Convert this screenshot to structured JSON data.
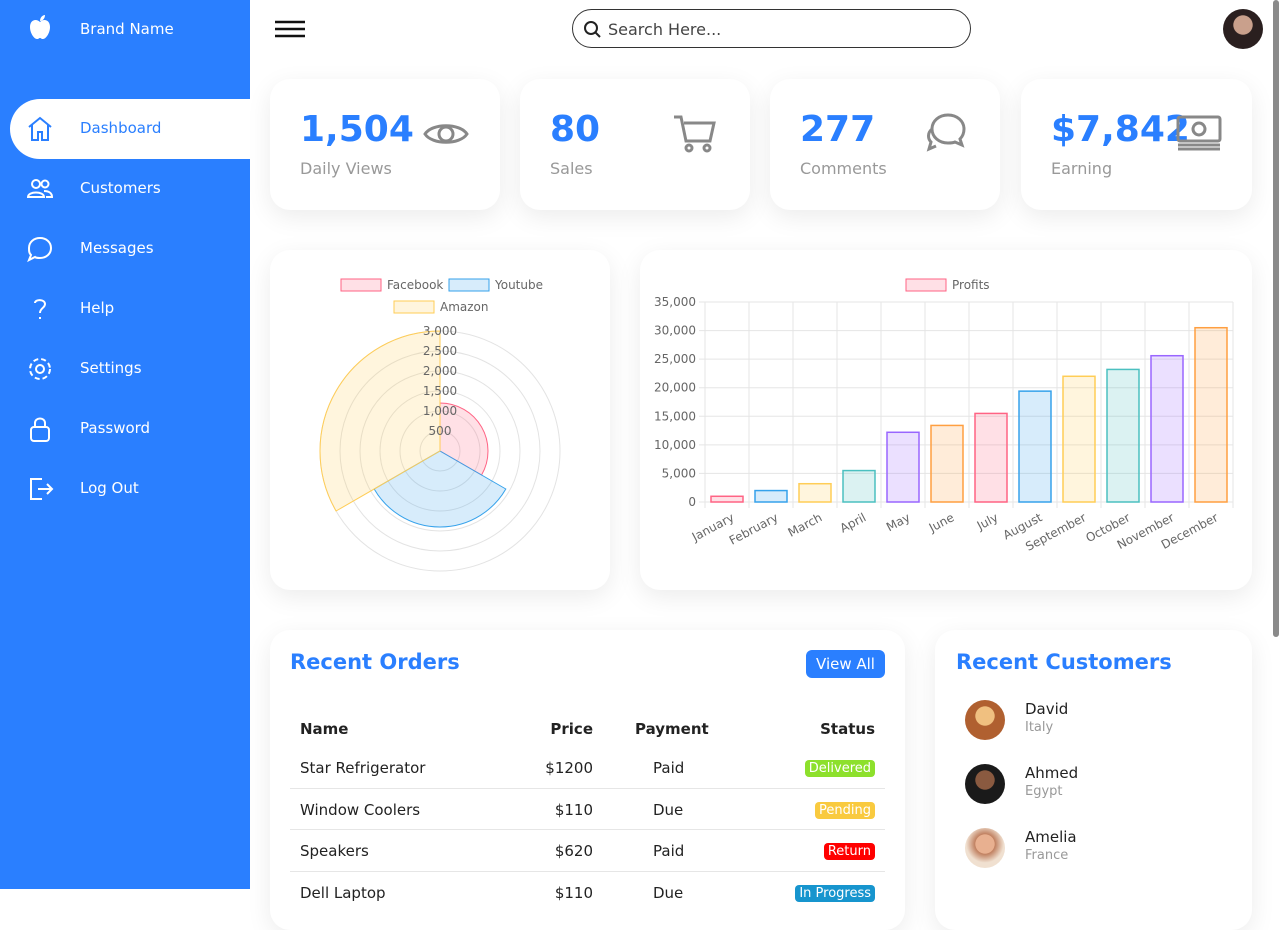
{
  "sidebar": {
    "brand": "Brand Name",
    "menu": [
      "Dashboard",
      "Customers",
      "Messages",
      "Help",
      "Settings",
      "Password",
      "Log Out"
    ]
  },
  "topbar": {
    "search_placeholder": "Search Here..."
  },
  "cards": [
    {
      "number": "1,504",
      "label": "Daily Views"
    },
    {
      "number": "80",
      "label": "Sales"
    },
    {
      "number": "277",
      "label": "Comments"
    },
    {
      "number": "$7,842",
      "label": "Earning"
    }
  ],
  "chart_data": [
    {
      "type": "polar",
      "categories": [
        "Facebook",
        "Youtube",
        "Amazon"
      ],
      "values": [
        1200,
        1900,
        3000
      ],
      "colors": [
        "#ff6384",
        "#36a2eb",
        "#ffcd56"
      ],
      "rlim": [
        0,
        3000
      ],
      "rticks": [
        500,
        {
          "value": 1000,
          "label": "1,000"
        },
        {
          "value": 1500,
          "label": "1,500"
        },
        {
          "value": 2000,
          "label": "2,000"
        },
        {
          "value": 2500,
          "label": "2,500"
        },
        {
          "value": 3000,
          "label": "3,000"
        }
      ],
      "grid": true,
      "legend": "top"
    },
    {
      "type": "bar",
      "categories": [
        "January",
        "February",
        "March",
        "April",
        "May",
        "June",
        "July",
        "August",
        "September",
        "October",
        "November",
        "December"
      ],
      "series": [
        {
          "name": "Profits",
          "color": "#ff6384",
          "bar_colors": [
            "#ff6384",
            "#36a2eb",
            "#ffcd56",
            "#4bc0c0",
            "#9966ff",
            "#ff9f40",
            "#ff6384",
            "#36a2eb",
            "#ffcd56",
            "#4bc0c0",
            "#9966ff",
            "#ff9f40"
          ],
          "values": [
            1000,
            2000,
            3200,
            5500,
            12200,
            13400,
            15500,
            19400,
            22000,
            23200,
            25600,
            30500
          ]
        }
      ],
      "ylim": [
        0,
        35000
      ],
      "yticks": [
        0,
        {
          "value": 5000,
          "label": "5,000"
        },
        {
          "value": 10000,
          "label": "10,000"
        },
        {
          "value": 15000,
          "label": "15,000"
        },
        {
          "value": 20000,
          "label": "20,000"
        },
        {
          "value": 25000,
          "label": "25,000"
        },
        {
          "value": 30000,
          "label": "30,000"
        },
        {
          "value": 35000,
          "label": "35,000"
        }
      ],
      "grid": true,
      "legend": "top"
    }
  ],
  "recent_orders": {
    "title": "Recent Orders",
    "button": "View All",
    "columns": [
      "Name",
      "Price",
      "Payment",
      "Status"
    ],
    "rows": [
      [
        "Star Refrigerator",
        "$1200",
        "Paid",
        "Delivered"
      ],
      [
        "Window Coolers",
        "$110",
        "Due",
        "Pending"
      ],
      [
        "Speakers",
        "$620",
        "Paid",
        "Return"
      ],
      [
        "Dell Laptop",
        "$110",
        "Due",
        "In Progress"
      ]
    ]
  },
  "recent_customers": {
    "title": "Recent Customers",
    "customers": [
      {
        "name": "David",
        "country": "Italy"
      },
      {
        "name": "Ahmed",
        "country": "Egypt"
      },
      {
        "name": "Amelia",
        "country": "France"
      }
    ]
  }
}
